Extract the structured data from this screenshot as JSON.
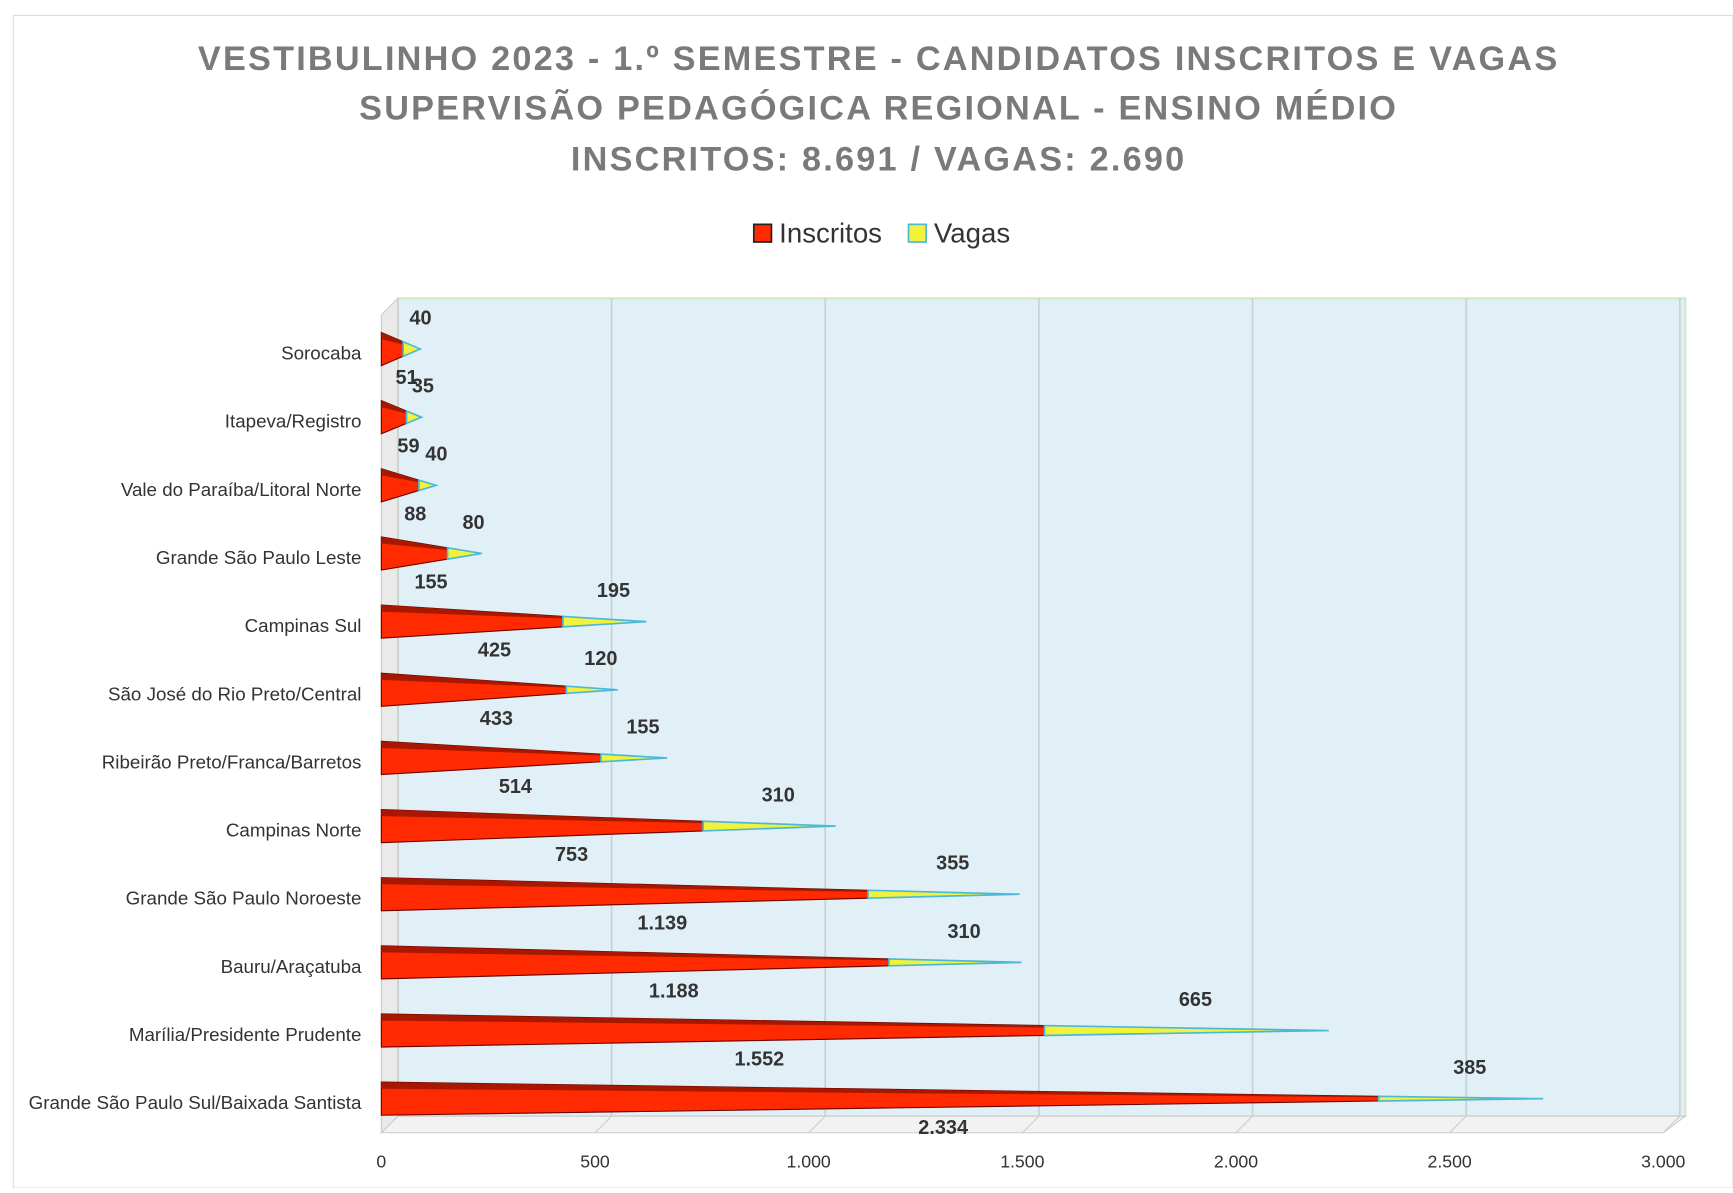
{
  "chart_data": {
    "type": "bar",
    "title": "VESTIBULINHO 2023 - 1.º SEMESTRE - CANDIDATOS INSCRITOS E VAGAS",
    "subtitle": "SUPERVISÃO PEDAGÓGICA REGIONAL - ENSINO MÉDIO",
    "summary": "INSCRITOS:  8.691 / VAGAS: 2.690",
    "orientation": "horizontal",
    "stacked": true,
    "categories": [
      "Sorocaba",
      "Itapeva/Registro",
      "Vale do Paraíba/Litoral Norte",
      "Grande São Paulo Leste",
      "Campinas Sul",
      "São José do Rio Preto/Central",
      "Ribeirão Preto/Franca/Barretos",
      "Campinas Norte",
      "Grande São Paulo Noroeste",
      "Bauru/Araçatuba",
      "Marília/Presidente Prudente",
      "Grande São Paulo Sul/Baixada Santista"
    ],
    "series": [
      {
        "name": "Inscritos",
        "color": "#ff2a00",
        "values": [
          51,
          59,
          88,
          155,
          425,
          433,
          514,
          753,
          1139,
          1188,
          1552,
          2334
        ],
        "value_labels": [
          "51",
          "59",
          "88",
          "155",
          "425",
          "433",
          "514",
          "753",
          "1.139",
          "1.188",
          "1.552",
          "2.334"
        ]
      },
      {
        "name": "Vagas",
        "color": "#f2f23a",
        "values": [
          40,
          35,
          40,
          80,
          195,
          120,
          155,
          310,
          355,
          310,
          665,
          385
        ]
      }
    ],
    "xlim": [
      0,
      3000
    ],
    "xticks": [
      0,
      500,
      {
        "value": 1000,
        "label": "1.000"
      },
      {
        "value": 1500,
        "label": "1.500"
      },
      {
        "value": 2000,
        "label": "2.000"
      },
      {
        "value": 2500,
        "label": "2.500"
      },
      {
        "value": 3000,
        "label": "3.000"
      }
    ],
    "grid": true,
    "legend": "top"
  }
}
